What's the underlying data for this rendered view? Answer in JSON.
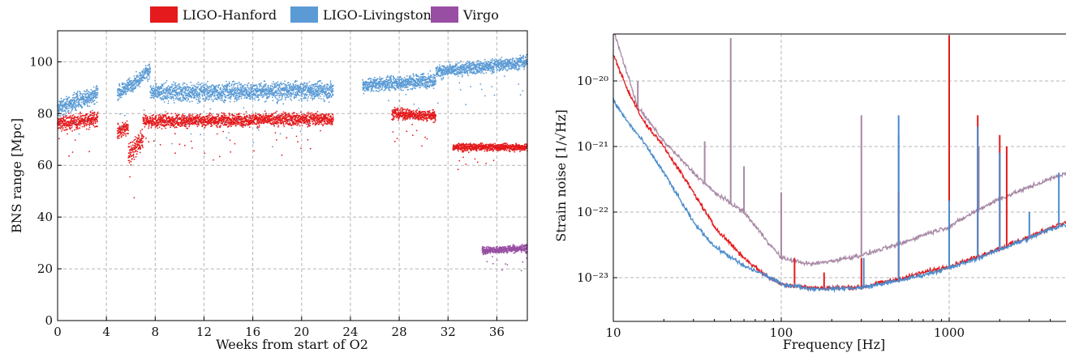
{
  "chart_data": [
    {
      "type": "scatter",
      "xlabel": "Weeks from start of O2",
      "ylabel": "BNS range [Mpc]",
      "xlim": [
        0,
        38.5
      ],
      "ylim": [
        0,
        112
      ],
      "xticks": [
        0,
        4,
        8,
        12,
        16,
        20,
        24,
        28,
        32,
        36
      ],
      "yticks": [
        0,
        20,
        40,
        60,
        80,
        100
      ],
      "grid": true,
      "legend": {
        "placement": "top",
        "entries": [
          "LIGO-Hanford",
          "LIGO-Livingston",
          "Virgo"
        ]
      },
      "series": [
        {
          "name": "LIGO-Hanford",
          "color": "#e41a1c",
          "segments": [
            {
              "x": [
                0.0,
                3.3
              ],
              "y": [
                76,
                78
              ],
              "spread": 4
            },
            {
              "x": [
                4.9,
                5.8
              ],
              "y": [
                73,
                75
              ],
              "spread": 4
            },
            {
              "x": [
                5.8,
                7.0
              ],
              "y": [
                64,
                70
              ],
              "spread": 6
            },
            {
              "x": [
                7.0,
                22.6
              ],
              "y": [
                77,
                78
              ],
              "spread": 3.5
            },
            {
              "x": [
                27.4,
                31.0
              ],
              "y": [
                80,
                79
              ],
              "spread": 3
            },
            {
              "x": [
                32.4,
                38.5
              ],
              "y": [
                67,
                67
              ],
              "spread": 2
            }
          ]
        },
        {
          "name": "LIGO-Livingston",
          "color": "#5b9bd5",
          "segments": [
            {
              "x": [
                0.0,
                3.3
              ],
              "y": [
                82,
                88
              ],
              "spread": 5
            },
            {
              "x": [
                4.9,
                6.3
              ],
              "y": [
                88,
                92
              ],
              "spread": 4
            },
            {
              "x": [
                6.3,
                7.6
              ],
              "y": [
                92,
                97
              ],
              "spread": 4
            },
            {
              "x": [
                7.6,
                22.6
              ],
              "y": [
                88,
                89
              ],
              "spread": 5
            },
            {
              "x": [
                25.0,
                31.0
              ],
              "y": [
                91,
                93
              ],
              "spread": 4
            },
            {
              "x": [
                31.0,
                38.5
              ],
              "y": [
                96,
                100
              ],
              "spread": 3.5
            }
          ]
        },
        {
          "name": "Virgo",
          "color": "#984ea3",
          "segments": [
            {
              "x": [
                34.8,
                38.5
              ],
              "y": [
                27,
                28
              ],
              "spread": 2
            }
          ]
        }
      ]
    },
    {
      "type": "line",
      "xlabel": "Frequency [Hz]",
      "ylabel": "Strain noise [1/√Hz]",
      "xscale": "log",
      "yscale": "log",
      "xlim": [
        10,
        5000
      ],
      "ylim": [
        3e-24,
        6e-20
      ],
      "xticks": [
        10,
        100,
        1000
      ],
      "xtick_labels": [
        "10",
        "100",
        "1000"
      ],
      "yticks": [
        1e-23,
        1e-22,
        1e-21,
        1e-20
      ],
      "ytick_labels": [
        "10⁻²³",
        "10⁻²²",
        "10⁻²¹",
        "10⁻²⁰"
      ],
      "grid": true,
      "series": [
        {
          "name": "Virgo",
          "color": "#a889a6",
          "points": [
            [
              10,
              6e-20
            ],
            [
              14,
              4e-21
            ],
            [
              20,
              1.2e-21
            ],
            [
              30,
              4e-22
            ],
            [
              40,
              2e-22
            ],
            [
              60,
              1e-22
            ],
            [
              80,
              4e-23
            ],
            [
              100,
              2e-23
            ],
            [
              150,
              1.6e-23
            ],
            [
              200,
              1.8e-23
            ],
            [
              300,
              2.2e-23
            ],
            [
              500,
              3.2e-23
            ],
            [
              700,
              4.5e-23
            ],
            [
              1000,
              6e-23
            ],
            [
              1500,
              1.1e-22
            ],
            [
              2000,
              1.6e-22
            ],
            [
              3000,
              2.4e-22
            ],
            [
              4000,
              3.2e-22
            ],
            [
              5000,
              4e-22
            ]
          ],
          "peaks": [
            [
              14,
              1e-20
            ],
            [
              35,
              1.2e-21
            ],
            [
              50,
              4.5e-20
            ],
            [
              60,
              5e-22
            ],
            [
              100,
              2e-22
            ],
            [
              300,
              3e-21
            ],
            [
              500,
              1.5e-21
            ],
            [
              1000,
              2e-21
            ],
            [
              1500,
              1e-21
            ],
            [
              2000,
              8e-22
            ]
          ]
        },
        {
          "name": "LIGO-Hanford",
          "color": "#e41a1c",
          "points": [
            [
              10,
              2.5e-20
            ],
            [
              12,
              8e-21
            ],
            [
              15,
              2.5e-21
            ],
            [
              20,
              1e-21
            ],
            [
              30,
              2e-22
            ],
            [
              40,
              6e-23
            ],
            [
              60,
              2e-23
            ],
            [
              80,
              1.1e-23
            ],
            [
              100,
              8e-24
            ],
            [
              150,
              7e-24
            ],
            [
              200,
              7e-24
            ],
            [
              300,
              7.2e-24
            ],
            [
              500,
              9.5e-24
            ],
            [
              700,
              1.2e-23
            ],
            [
              1000,
              1.5e-23
            ],
            [
              1500,
              2.1e-23
            ],
            [
              2000,
              2.8e-23
            ],
            [
              3000,
              4.2e-23
            ],
            [
              4000,
              5.8e-23
            ],
            [
              5000,
              7e-23
            ]
          ],
          "peaks": [
            [
              60,
              2e-23
            ],
            [
              120,
              2e-23
            ],
            [
              180,
              1.2e-23
            ],
            [
              300,
              2e-23
            ],
            [
              500,
              2e-22
            ],
            [
              1000,
              5e-20
            ],
            [
              1480,
              3e-21
            ],
            [
              2000,
              1.5e-21
            ],
            [
              2200,
              1e-21
            ]
          ]
        },
        {
          "name": "LIGO-Livingston",
          "color": "#4a8bcc",
          "points": [
            [
              10,
              5e-21
            ],
            [
              12,
              2.5e-21
            ],
            [
              15,
              1.2e-21
            ],
            [
              20,
              4e-22
            ],
            [
              30,
              7e-23
            ],
            [
              40,
              3e-23
            ],
            [
              60,
              1.5e-23
            ],
            [
              80,
              1.1e-23
            ],
            [
              100,
              8e-24
            ],
            [
              150,
              6.8e-24
            ],
            [
              200,
              6.8e-24
            ],
            [
              300,
              7e-24
            ],
            [
              500,
              9e-24
            ],
            [
              700,
              1.1e-23
            ],
            [
              1000,
              1.4e-23
            ],
            [
              1500,
              2e-23
            ],
            [
              2000,
              2.7e-23
            ],
            [
              3000,
              4e-23
            ],
            [
              4000,
              5.5e-23
            ],
            [
              5000,
              6.5e-23
            ]
          ],
          "peaks": [
            [
              310,
              2e-23
            ],
            [
              500,
              3e-21
            ],
            [
              1000,
              1.5e-22
            ],
            [
              1480,
              2e-21
            ],
            [
              2000,
              8e-22
            ],
            [
              3000,
              1e-22
            ],
            [
              4500,
              4e-22
            ]
          ]
        }
      ]
    }
  ]
}
